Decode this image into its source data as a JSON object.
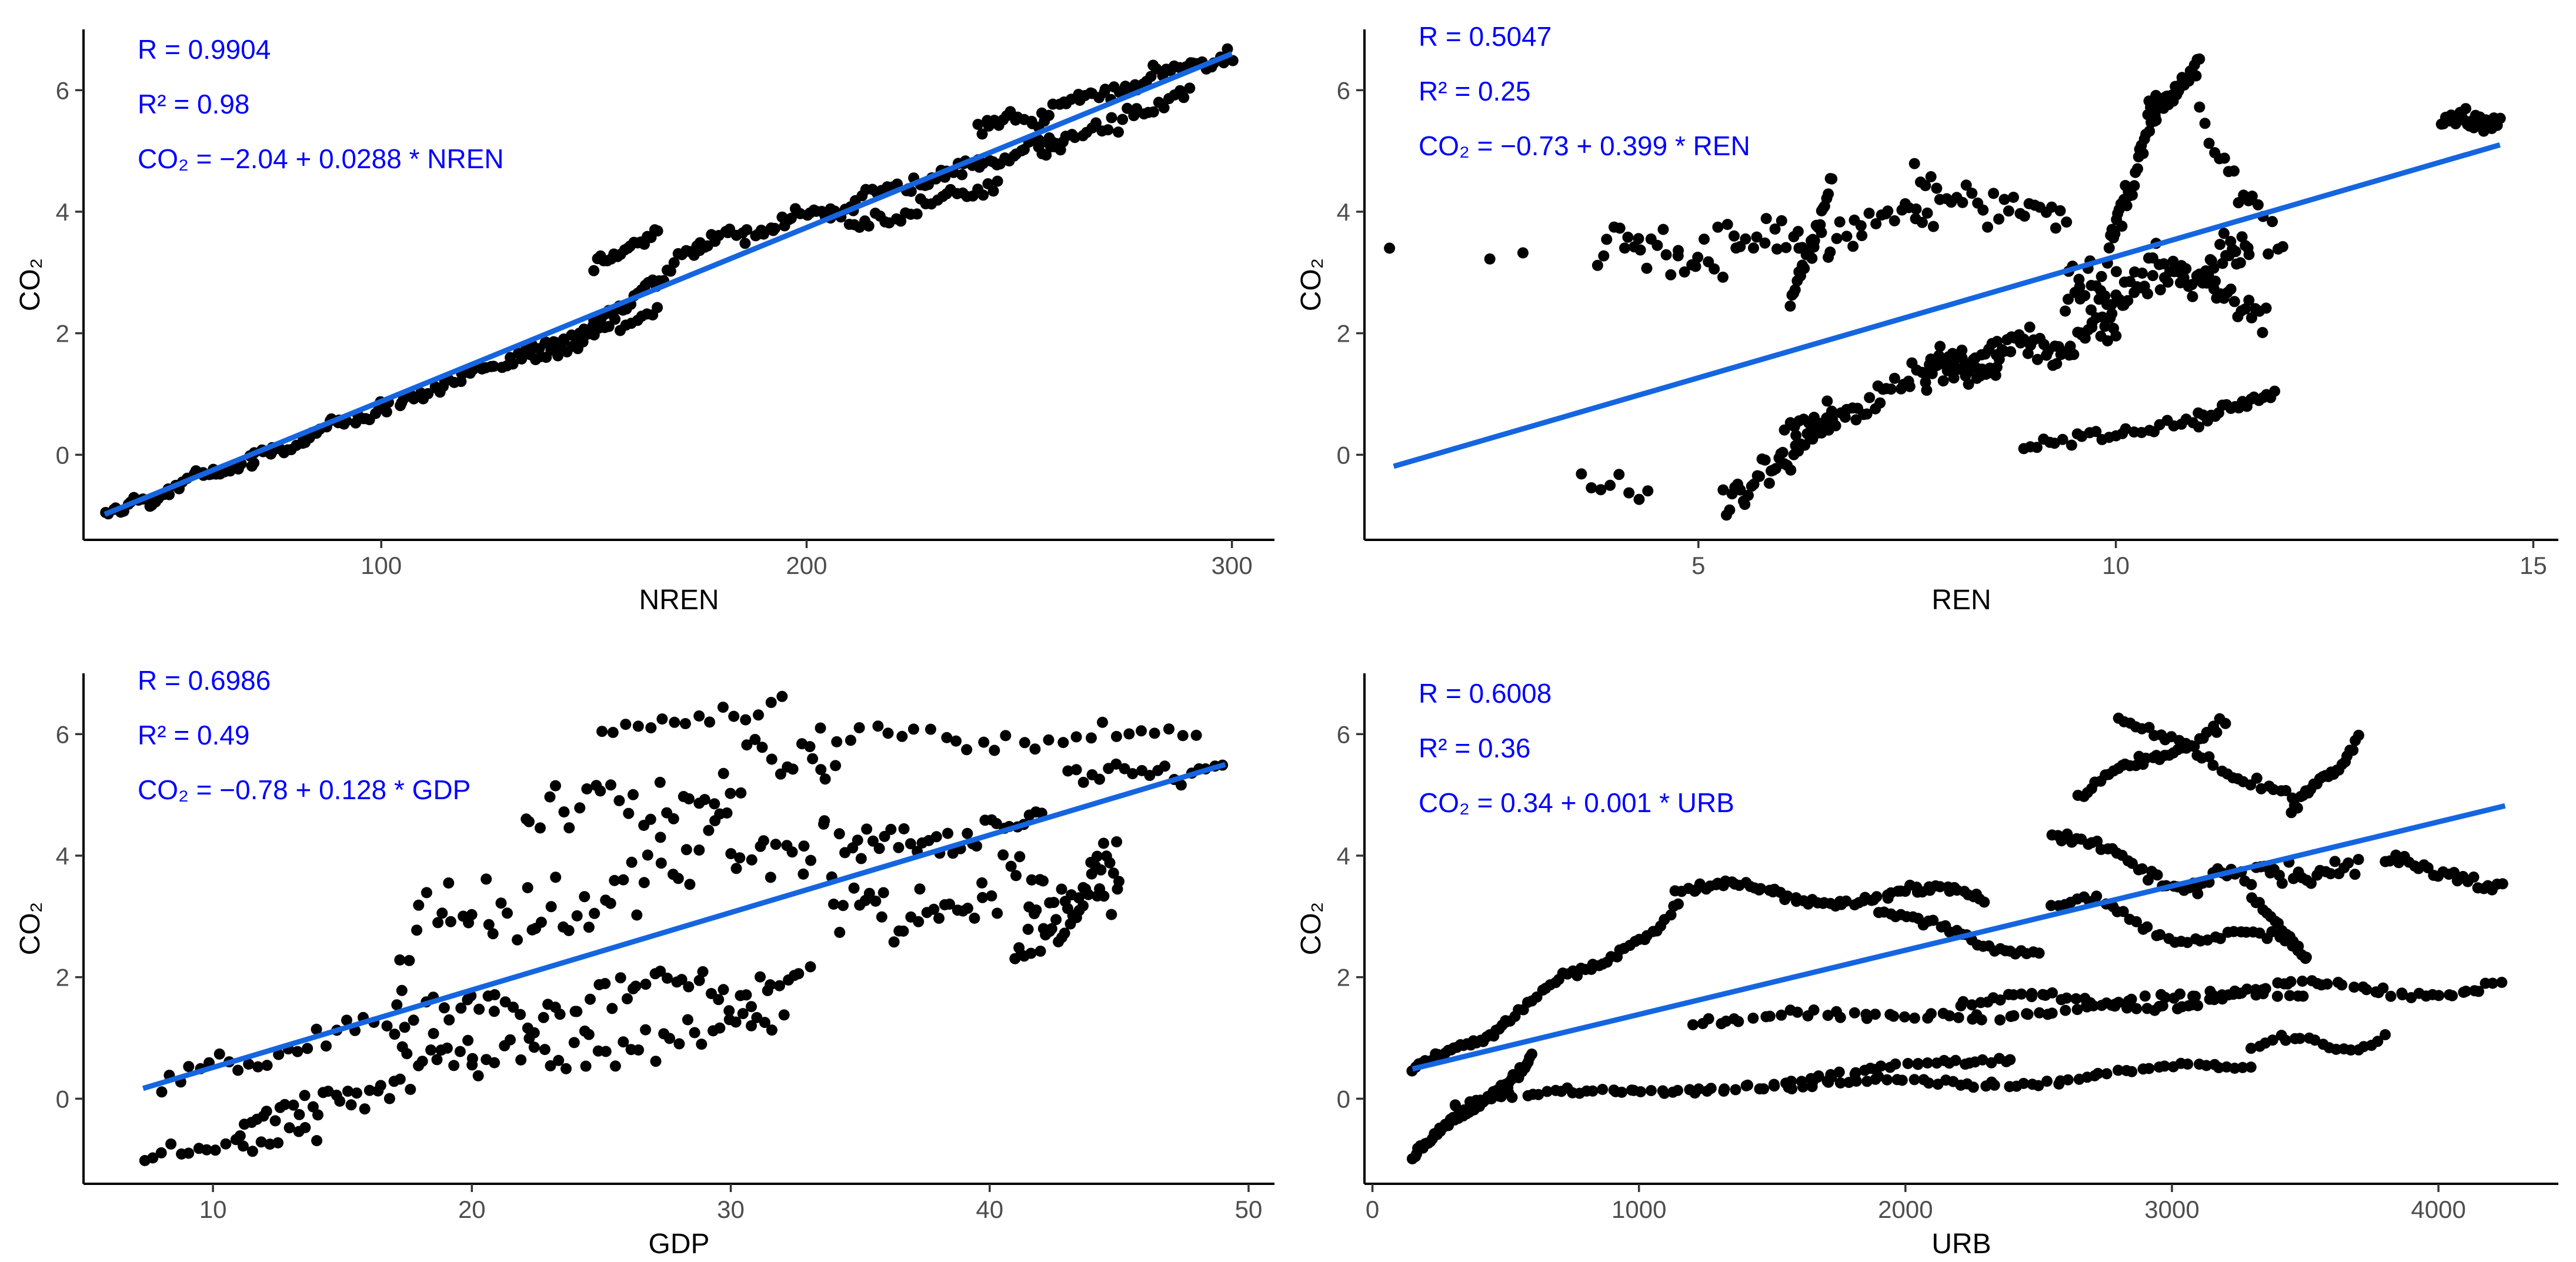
{
  "colors": {
    "points": "#000000",
    "fit_line": "#1565e0",
    "annotation": "#0000ff"
  },
  "chart_data": [
    {
      "type": "scatter",
      "id": "nren",
      "xlabel": "NREN",
      "ylabel": "CO₂",
      "xlim": [
        30,
        310
      ],
      "ylim": [
        -1.4,
        7.0
      ],
      "xticks": [
        100,
        200,
        300
      ],
      "yticks": [
        0,
        2,
        4,
        6
      ],
      "annotations": [
        "R = 0.9904",
        "R² = 0.98",
        "CO₂ = −2.04 + 0.0288 * NREN"
      ],
      "fit": {
        "x": [
          35,
          300
        ],
        "y": [
          -0.98,
          6.6
        ]
      },
      "segments": [
        {
          "x0": 35,
          "x1": 150,
          "y0": -1.0,
          "y1": 2.1,
          "n": 130,
          "noise": 0.09,
          "wave": 0.05,
          "pw": 14
        },
        {
          "x0": 150,
          "x1": 175,
          "y0": 2.1,
          "y1": 3.4,
          "n": 30,
          "noise": 0.13,
          "wave": 0.05,
          "pw": 5
        },
        {
          "x0": 135,
          "x1": 165,
          "y0": 1.5,
          "y1": 2.4,
          "n": 25,
          "noise": 0.12,
          "wave": 0.04,
          "pw": 4
        },
        {
          "x0": 150,
          "x1": 165,
          "y0": 3.1,
          "y1": 3.7,
          "n": 20,
          "noise": 0.12,
          "wave": 0.03,
          "pw": 4
        },
        {
          "x0": 175,
          "x1": 260,
          "y0": 3.4,
          "y1": 5.2,
          "n": 90,
          "noise": 0.12,
          "wave": 0.08,
          "pw": 9
        },
        {
          "x0": 210,
          "x1": 245,
          "y0": 3.7,
          "y1": 4.5,
          "n": 30,
          "noise": 0.12,
          "wave": 0.05,
          "pw": 4
        },
        {
          "x0": 240,
          "x1": 300,
          "y0": 5.3,
          "y1": 6.6,
          "n": 60,
          "noise": 0.14,
          "wave": 0.08,
          "pw": 6
        },
        {
          "x0": 255,
          "x1": 290,
          "y0": 5.0,
          "y1": 6.0,
          "n": 30,
          "noise": 0.15,
          "wave": 0.05,
          "pw": 4
        }
      ]
    },
    {
      "type": "scatter",
      "id": "ren",
      "xlabel": "REN",
      "ylabel": "CO₂",
      "xlim": [
        1,
        15.3
      ],
      "ylim": [
        -1.4,
        7.0
      ],
      "xticks": [
        5,
        10,
        15
      ],
      "yticks": [
        0,
        2,
        4,
        6
      ],
      "annotations": [
        "R = 0.5047",
        "R² = 0.25",
        "CO₂ = −0.73 + 0.399 * REN"
      ],
      "fit": {
        "x": [
          1.35,
          14.6
        ],
        "y": [
          -0.19,
          5.1
        ]
      },
      "segments": [
        {
          "x0": 1.3,
          "x1": 1.3,
          "y0": 3.4,
          "y1": 3.4,
          "n": 1,
          "noise": 0.0,
          "wave": 0,
          "pw": 1
        },
        {
          "x0": 2.5,
          "x1": 2.9,
          "y0": 3.2,
          "y1": 3.3,
          "n": 2,
          "noise": 0.03,
          "wave": 0,
          "pw": 1
        },
        {
          "x0": 3.8,
          "x1": 7.8,
          "y0": 3.3,
          "y1": 3.8,
          "n": 70,
          "noise": 0.35,
          "wave": 0.2,
          "pw": 5
        },
        {
          "x0": 6.1,
          "x1": 6.6,
          "y0": 2.5,
          "y1": 4.5,
          "n": 25,
          "noise": 0.15,
          "wave": 0.05,
          "pw": 2
        },
        {
          "x0": 7.6,
          "x1": 9.4,
          "y0": 4.4,
          "y1": 3.8,
          "n": 30,
          "noise": 0.3,
          "wave": 0.1,
          "pw": 3
        },
        {
          "x0": 3.6,
          "x1": 4.4,
          "y0": -0.6,
          "y1": -0.6,
          "n": 8,
          "noise": 0.25,
          "wave": 0,
          "pw": 1
        },
        {
          "x0": 5.3,
          "x1": 6.6,
          "y0": -0.9,
          "y1": 0.6,
          "n": 40,
          "noise": 0.3,
          "wave": 0.1,
          "pw": 3
        },
        {
          "x0": 6.0,
          "x1": 8.6,
          "y0": 0.2,
          "y1": 1.9,
          "n": 60,
          "noise": 0.22,
          "wave": 0.1,
          "pw": 4
        },
        {
          "x0": 7.7,
          "x1": 10.0,
          "y0": 1.3,
          "y1": 2.1,
          "n": 70,
          "noise": 0.28,
          "wave": 0.15,
          "pw": 5
        },
        {
          "x0": 9.4,
          "x1": 11.6,
          "y0": 2.6,
          "y1": 3.2,
          "n": 80,
          "noise": 0.4,
          "wave": 0.2,
          "pw": 5
        },
        {
          "x0": 9.9,
          "x1": 10.5,
          "y0": 3.3,
          "y1": 5.9,
          "n": 35,
          "noise": 0.3,
          "wave": 0.1,
          "pw": 3
        },
        {
          "x0": 10.4,
          "x1": 11.0,
          "y0": 5.5,
          "y1": 6.5,
          "n": 30,
          "noise": 0.2,
          "wave": 0.05,
          "pw": 2
        },
        {
          "x0": 11.0,
          "x1": 12.0,
          "y0": 5.4,
          "y1": 3.4,
          "n": 18,
          "noise": 0.3,
          "wave": 0.05,
          "pw": 2
        },
        {
          "x0": 11.0,
          "x1": 11.8,
          "y0": 2.8,
          "y1": 2.3,
          "n": 20,
          "noise": 0.25,
          "wave": 0.05,
          "pw": 2
        },
        {
          "x0": 8.9,
          "x1": 11.0,
          "y0": 0.1,
          "y1": 0.6,
          "n": 28,
          "noise": 0.1,
          "wave": 0.05,
          "pw": 2
        },
        {
          "x0": 11.0,
          "x1": 11.9,
          "y0": 0.5,
          "y1": 1.1,
          "n": 20,
          "noise": 0.1,
          "wave": 0.04,
          "pw": 2
        },
        {
          "x0": 13.9,
          "x1": 14.6,
          "y0": 5.5,
          "y1": 5.5,
          "n": 30,
          "noise": 0.18,
          "wave": 0.05,
          "pw": 2
        }
      ]
    },
    {
      "type": "scatter",
      "id": "gdp",
      "xlabel": "GDP",
      "ylabel": "CO₂",
      "xlim": [
        5,
        51
      ],
      "ylim": [
        -1.4,
        7.0
      ],
      "xticks": [
        10,
        20,
        30,
        40,
        50
      ],
      "yticks": [
        0,
        2,
        4,
        6
      ],
      "annotations": [
        "R = 0.6986",
        "R² = 0.49",
        "CO₂ = −0.78 + 0.128 * GDP"
      ],
      "fit": {
        "x": [
          7.3,
          49.1
        ],
        "y": [
          0.17,
          5.5
        ]
      },
      "segments": [
        {
          "x0": 7.3,
          "x1": 14,
          "y0": -1.0,
          "y1": -0.5,
          "n": 20,
          "noise": 0.18,
          "wave": 0.1,
          "pw": 2
        },
        {
          "x0": 11,
          "x1": 20,
          "y0": -0.5,
          "y1": 0.8,
          "n": 40,
          "noise": 0.3,
          "wave": 0.15,
          "pw": 3
        },
        {
          "x0": 8,
          "x1": 17,
          "y0": 0.2,
          "y1": 1.3,
          "n": 25,
          "noise": 0.22,
          "wave": 0.1,
          "pw": 3
        },
        {
          "x0": 17,
          "x1": 33,
          "y0": 1.2,
          "y1": 2.1,
          "n": 60,
          "noise": 0.35,
          "wave": 0.2,
          "pw": 4
        },
        {
          "x0": 20,
          "x1": 32,
          "y0": 0.5,
          "y1": 1.2,
          "n": 40,
          "noise": 0.3,
          "wave": 0.15,
          "pw": 3
        },
        {
          "x0": 17,
          "x1": 35,
          "y0": 2.5,
          "y1": 4.5,
          "n": 70,
          "noise": 0.8,
          "wave": 0.3,
          "pw": 4
        },
        {
          "x0": 22,
          "x1": 34,
          "y0": 4.5,
          "y1": 5.6,
          "n": 40,
          "noise": 0.5,
          "wave": 0.2,
          "pw": 3
        },
        {
          "x0": 25,
          "x1": 32,
          "y0": 6.0,
          "y1": 6.5,
          "n": 16,
          "noise": 0.15,
          "wave": 0.05,
          "pw": 2
        },
        {
          "x0": 33,
          "x1": 48,
          "y0": 5.9,
          "y1": 6.0,
          "n": 30,
          "noise": 0.2,
          "wave": 0.1,
          "pw": 3
        },
        {
          "x0": 34,
          "x1": 45,
          "y0": 2.9,
          "y1": 3.6,
          "n": 50,
          "noise": 0.45,
          "wave": 0.2,
          "pw": 4
        },
        {
          "x0": 41,
          "x1": 45,
          "y0": 2.2,
          "y1": 3.9,
          "n": 35,
          "noise": 0.4,
          "wave": 0.15,
          "pw": 3
        },
        {
          "x0": 35,
          "x1": 42,
          "y0": 4.0,
          "y1": 4.6,
          "n": 30,
          "noise": 0.25,
          "wave": 0.1,
          "pw": 3
        },
        {
          "x0": 43,
          "x1": 49,
          "y0": 5.3,
          "y1": 5.4,
          "n": 20,
          "noise": 0.2,
          "wave": 0.05,
          "pw": 2
        }
      ]
    },
    {
      "type": "scatter",
      "id": "urb",
      "xlabel": "URB",
      "ylabel": "CO₂",
      "xlim": [
        -30,
        4450
      ],
      "ylim": [
        -1.4,
        7.0
      ],
      "xticks": [
        0,
        1000,
        2000,
        3000,
        4000
      ],
      "yticks": [
        0,
        2,
        4,
        6
      ],
      "annotations": [
        "R = 0.6008",
        "R² = 0.36",
        "CO₂ = 0.34 + 0.001 * URB"
      ],
      "fit": {
        "x": [
          150,
          4250
        ],
        "y": [
          0.49,
          4.82
        ]
      },
      "segments": [
        {
          "x0": 150,
          "x1": 600,
          "y0": -1.0,
          "y1": 0.7,
          "n": 60,
          "noise": 0.08,
          "wave": 0.1,
          "pw": 2
        },
        {
          "x0": 150,
          "x1": 500,
          "y0": 0.5,
          "y1": 1.2,
          "n": 30,
          "noise": 0.06,
          "wave": 0.05,
          "pw": 2
        },
        {
          "x0": 500,
          "x1": 1150,
          "y0": 1.2,
          "y1": 3.2,
          "n": 40,
          "noise": 0.07,
          "wave": 0.15,
          "pw": 2
        },
        {
          "x0": 1150,
          "x1": 2300,
          "y0": 3.4,
          "y1": 3.3,
          "n": 70,
          "noise": 0.06,
          "wave": 0.15,
          "pw": 3
        },
        {
          "x0": 1900,
          "x1": 2500,
          "y0": 3.0,
          "y1": 2.4,
          "n": 30,
          "noise": 0.06,
          "wave": 0.1,
          "pw": 2
        },
        {
          "x0": 300,
          "x1": 2400,
          "y0": -0.1,
          "y1": 0.6,
          "n": 80,
          "noise": 0.05,
          "wave": 0.1,
          "pw": 3
        },
        {
          "x0": 1550,
          "x1": 3300,
          "y0": 0.15,
          "y1": 0.5,
          "n": 60,
          "noise": 0.05,
          "wave": 0.1,
          "pw": 3
        },
        {
          "x0": 3300,
          "x1": 3800,
          "y0": 0.8,
          "y1": 1.0,
          "n": 20,
          "noise": 0.05,
          "wave": 0.15,
          "pw": 2
        },
        {
          "x0": 1200,
          "x1": 3500,
          "y0": 1.2,
          "y1": 1.7,
          "n": 70,
          "noise": 0.06,
          "wave": 0.1,
          "pw": 3
        },
        {
          "x0": 2200,
          "x1": 4240,
          "y0": 1.5,
          "y1": 1.9,
          "n": 80,
          "noise": 0.06,
          "wave": 0.15,
          "pw": 4
        },
        {
          "x0": 2550,
          "x1": 3500,
          "y0": 3.2,
          "y1": 2.4,
          "n": 40,
          "noise": 0.08,
          "wave": 0.2,
          "pw": 3
        },
        {
          "x0": 2550,
          "x1": 3100,
          "y0": 4.3,
          "y1": 3.5,
          "n": 30,
          "noise": 0.1,
          "wave": 0.15,
          "pw": 2
        },
        {
          "x0": 2650,
          "x1": 3200,
          "y0": 5.0,
          "y1": 6.2,
          "n": 35,
          "noise": 0.1,
          "wave": 0.1,
          "pw": 2
        },
        {
          "x0": 2800,
          "x1": 3450,
          "y0": 6.2,
          "y1": 5.0,
          "n": 30,
          "noise": 0.1,
          "wave": 0.1,
          "pw": 2
        },
        {
          "x0": 3450,
          "x1": 3700,
          "y0": 4.7,
          "y1": 5.9,
          "n": 25,
          "noise": 0.08,
          "wave": 0.1,
          "pw": 2
        },
        {
          "x0": 3100,
          "x1": 3700,
          "y0": 3.5,
          "y1": 3.9,
          "n": 35,
          "noise": 0.2,
          "wave": 0.1,
          "pw": 2
        },
        {
          "x0": 3800,
          "x1": 4240,
          "y0": 3.9,
          "y1": 3.5,
          "n": 25,
          "noise": 0.1,
          "wave": 0.05,
          "pw": 2
        },
        {
          "x0": 3300,
          "x1": 3500,
          "y0": 3.3,
          "y1": 2.3,
          "n": 15,
          "noise": 0.05,
          "wave": 0.05,
          "pw": 1
        }
      ]
    }
  ]
}
